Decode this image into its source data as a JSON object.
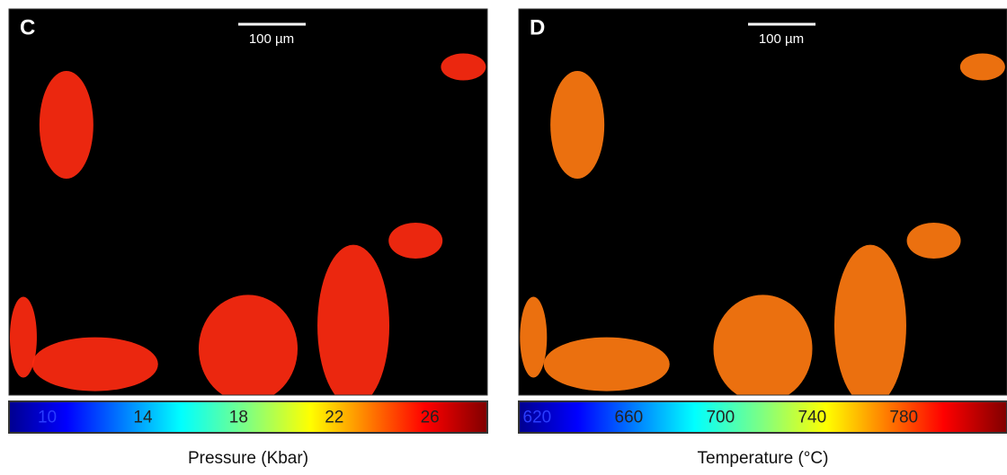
{
  "panels": [
    {
      "label": "C",
      "scale_bar": "100 µm",
      "colorbar": {
        "lim": [
          8.4,
          28.4
        ],
        "ticks": [
          10,
          14,
          18,
          22,
          26
        ],
        "label": "Pressure (Kbar)"
      }
    },
    {
      "label": "D",
      "scale_bar": "100 µm",
      "colorbar": {
        "lim": [
          612,
          825
        ],
        "ticks": [
          620,
          660,
          700,
          740,
          780
        ],
        "label": "Temperature (°C)"
      }
    }
  ]
}
